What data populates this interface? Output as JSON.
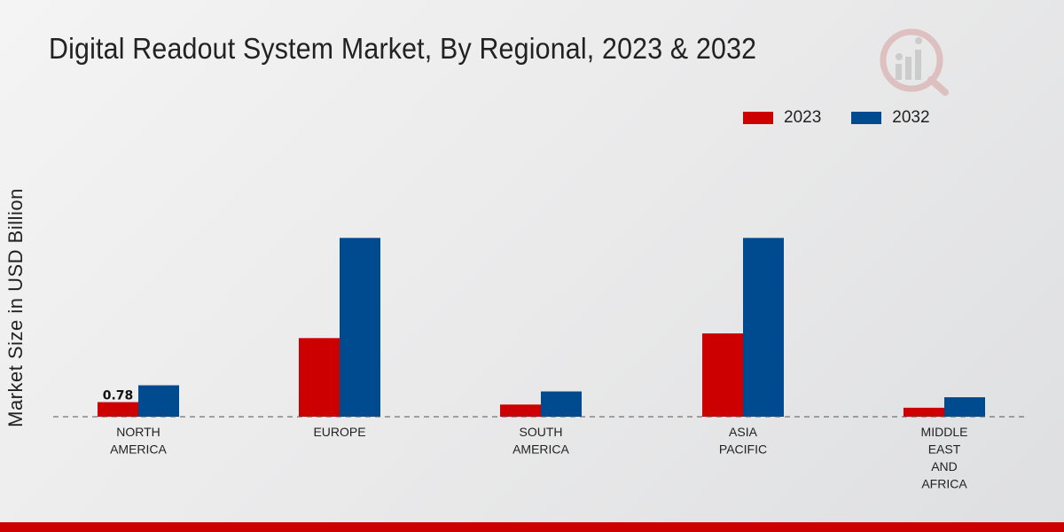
{
  "chart_data": {
    "type": "bar",
    "title": "Digital Readout System Market, By Regional, 2023 & 2032",
    "ylabel": "Market Size in USD Billion",
    "xlabel": "",
    "categories": [
      [
        "NORTH",
        "AMERICA"
      ],
      [
        "EUROPE"
      ],
      [
        "SOUTH",
        "AMERICA"
      ],
      [
        "ASIA",
        "PACIFIC"
      ],
      [
        "MIDDLE",
        "EAST",
        "AND",
        "AFRICA"
      ]
    ],
    "series": [
      {
        "name": "2023",
        "color": "#cc0000",
        "values": [
          0.78,
          4.2,
          0.65,
          4.45,
          0.48
        ]
      },
      {
        "name": "2032",
        "color": "#004a8f",
        "values": [
          1.68,
          9.55,
          1.35,
          9.55,
          1.04
        ]
      }
    ],
    "data_labels": [
      {
        "series": 0,
        "category": 0,
        "text": "0.78"
      }
    ],
    "ylim": [
      0,
      16.1
    ],
    "grid": false,
    "legend_position": "top-right"
  }
}
